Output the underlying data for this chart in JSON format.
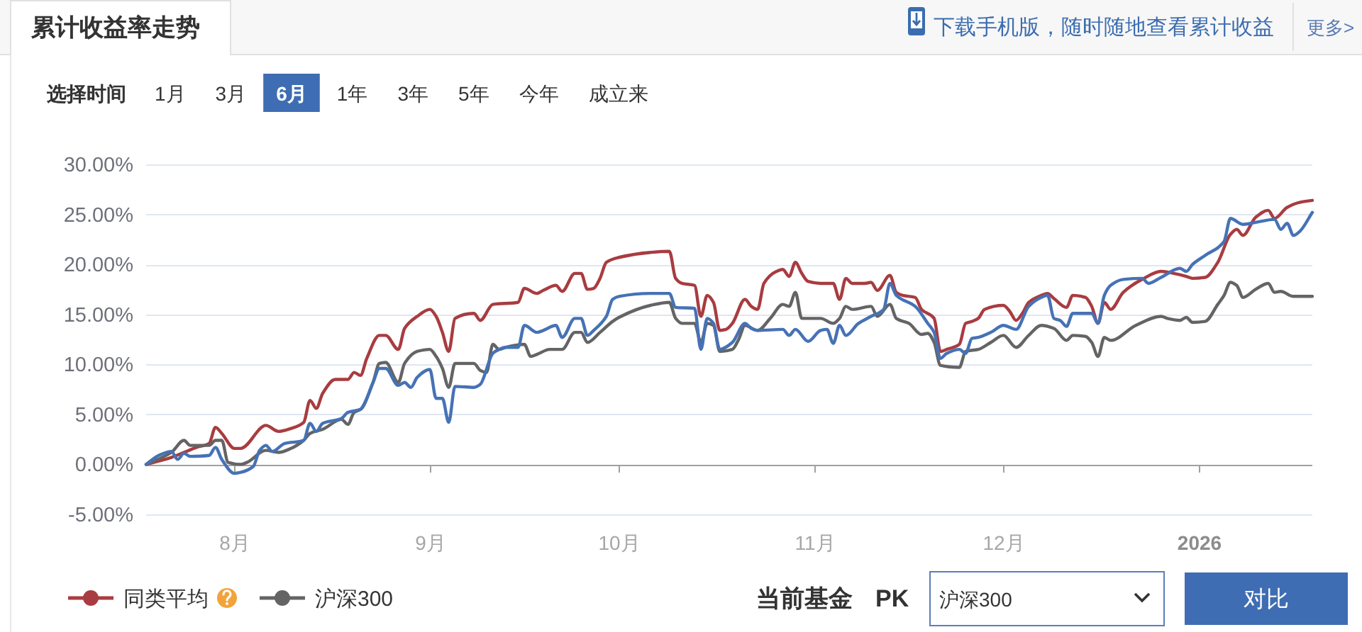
{
  "chart_data": {
    "type": "line",
    "title": "累计收益率走势",
    "xlim": [
      "2025-07-18",
      "2026-01-19"
    ],
    "xticks": [
      {
        "value": "2025-08-01",
        "label": "8月"
      },
      {
        "value": "2025-09-01",
        "label": "9月"
      },
      {
        "value": "2025-10-01",
        "label": "10月"
      },
      {
        "value": "2025-11-01",
        "label": "11月"
      },
      {
        "value": "2025-12-01",
        "label": "12月"
      },
      {
        "value": "2026-01-01",
        "label": "2026"
      }
    ],
    "ylim": [
      -5,
      30
    ],
    "yticks": [
      {
        "value": -5,
        "label": "-5.00%"
      },
      {
        "value": 0,
        "label": "0.00%"
      },
      {
        "value": 5,
        "label": "5.00%"
      },
      {
        "value": 10,
        "label": "10.00%"
      },
      {
        "value": 15,
        "label": "15.00%"
      },
      {
        "value": 20,
        "label": "20.00%"
      },
      {
        "value": 25,
        "label": "25.00%"
      },
      {
        "value": 30,
        "label": "30.00%"
      }
    ],
    "grid": "y",
    "legend": "bottom",
    "series": [
      {
        "name": "同类平均",
        "color": "#a83c40",
        "x": [
          "2025-07-18",
          "2025-07-22",
          "2025-07-24",
          "2025-07-26",
          "2025-07-28",
          "2025-07-29",
          "2025-07-30",
          "2025-08-01",
          "2025-08-02",
          "2025-08-06",
          "2025-08-08",
          "2025-08-10",
          "2025-08-12",
          "2025-08-13",
          "2025-08-14",
          "2025-08-15",
          "2025-08-17",
          "2025-08-19",
          "2025-08-20",
          "2025-08-21",
          "2025-08-22",
          "2025-08-24",
          "2025-08-25",
          "2025-08-27",
          "2025-08-28",
          "2025-08-30",
          "2025-09-01",
          "2025-09-02",
          "2025-09-03",
          "2025-09-04",
          "2025-09-05",
          "2025-09-08",
          "2025-09-09",
          "2025-09-11",
          "2025-09-15",
          "2025-09-16",
          "2025-09-18",
          "2025-09-19",
          "2025-09-21",
          "2025-09-22",
          "2025-09-24",
          "2025-09-25",
          "2025-09-26",
          "2025-09-27",
          "2025-09-28",
          "2025-09-29",
          "2025-10-01",
          "2025-10-06",
          "2025-10-09",
          "2025-10-10",
          "2025-10-11",
          "2025-10-13",
          "2025-10-14",
          "2025-10-15",
          "2025-10-16",
          "2025-10-17",
          "2025-10-18",
          "2025-10-19",
          "2025-10-21",
          "2025-10-22",
          "2025-10-23",
          "2025-10-24",
          "2025-10-26",
          "2025-10-27",
          "2025-10-28",
          "2025-10-29",
          "2025-10-30",
          "2025-10-31",
          "2025-11-02",
          "2025-11-04",
          "2025-11-05",
          "2025-11-06",
          "2025-11-07",
          "2025-11-09",
          "2025-11-10",
          "2025-11-11",
          "2025-11-13",
          "2025-11-14",
          "2025-11-15",
          "2025-11-17",
          "2025-11-18",
          "2025-11-20",
          "2025-11-21",
          "2025-11-22",
          "2025-11-24",
          "2025-11-25",
          "2025-11-26",
          "2025-11-27",
          "2025-11-28",
          "2025-12-01",
          "2025-12-02",
          "2025-12-03",
          "2025-12-04",
          "2025-12-05",
          "2025-12-07",
          "2025-12-08",
          "2025-12-09",
          "2025-12-11",
          "2025-12-12",
          "2025-12-14",
          "2025-12-15",
          "2025-12-16",
          "2025-12-17",
          "2025-12-18",
          "2025-12-20",
          "2025-12-23",
          "2025-12-26",
          "2025-12-28",
          "2025-12-30",
          "2025-12-31",
          "2026-01-02",
          "2026-01-04",
          "2026-01-06",
          "2026-01-07",
          "2026-01-08",
          "2026-01-10",
          "2026-01-12",
          "2026-01-13",
          "2026-01-15",
          "2026-01-17",
          "2026-01-19"
        ],
        "values": [
          0,
          0.7,
          1.2,
          1.7,
          2.1,
          3.7,
          3.1,
          1.6,
          1.6,
          3.9,
          3.3,
          3.6,
          4.2,
          6.4,
          5.6,
          7.1,
          8.5,
          8.5,
          9.2,
          8.9,
          10.6,
          12.9,
          12.9,
          11.5,
          13.6,
          14.8,
          15.5,
          14.8,
          13.2,
          11.3,
          14.6,
          15.1,
          14.4,
          16.0,
          16.2,
          17.6,
          17.1,
          17.4,
          17.9,
          17.3,
          19.1,
          19.1,
          17.5,
          17.6,
          18.6,
          20.2,
          20.7,
          21.2,
          21.3,
          18.6,
          18.1,
          17.9,
          14.8,
          16.9,
          16.2,
          13.4,
          13.5,
          14.1,
          16.5,
          15.8,
          15.5,
          18.1,
          19.3,
          19.5,
          18.8,
          20.2,
          19.1,
          18.3,
          18.1,
          18.1,
          16.5,
          18.6,
          18.1,
          18.1,
          18.2,
          17.4,
          18.9,
          17.2,
          16.9,
          16.7,
          15.5,
          14.6,
          11.3,
          11.5,
          12.0,
          14.1,
          14.3,
          14.6,
          15.5,
          15.9,
          15.3,
          14.4,
          15.1,
          16.2,
          16.9,
          17.1,
          16.6,
          15.7,
          16.9,
          16.7,
          15.8,
          14.1,
          16.2,
          15.5,
          17.2,
          18.5,
          19.3,
          19.1,
          18.8,
          18.6,
          18.7,
          20.2,
          23.0,
          23.5,
          22.9,
          24.7,
          25.4,
          24.6,
          25.7,
          26.2,
          26.4
        ]
      },
      {
        "name": "沪深300",
        "color": "#646464",
        "x": [
          "2025-07-18",
          "2025-07-22",
          "2025-07-24",
          "2025-07-25",
          "2025-07-28",
          "2025-07-29",
          "2025-07-30",
          "2025-07-31",
          "2025-08-02",
          "2025-08-03",
          "2025-08-06",
          "2025-08-08",
          "2025-08-10",
          "2025-08-12",
          "2025-08-13",
          "2025-08-15",
          "2025-08-18",
          "2025-08-19",
          "2025-08-20",
          "2025-08-21",
          "2025-08-23",
          "2025-08-24",
          "2025-08-25",
          "2025-08-27",
          "2025-08-28",
          "2025-08-30",
          "2025-09-01",
          "2025-09-02",
          "2025-09-03",
          "2025-09-04",
          "2025-09-05",
          "2025-09-08",
          "2025-09-09",
          "2025-09-10",
          "2025-09-11",
          "2025-09-12",
          "2025-09-13",
          "2025-09-16",
          "2025-09-17",
          "2025-09-18",
          "2025-09-20",
          "2025-09-22",
          "2025-09-24",
          "2025-09-25",
          "2025-09-26",
          "2025-09-28",
          "2025-09-30",
          "2025-10-01",
          "2025-10-06",
          "2025-10-09",
          "2025-10-10",
          "2025-10-11",
          "2025-10-13",
          "2025-10-14",
          "2025-10-15",
          "2025-10-16",
          "2025-10-17",
          "2025-10-19",
          "2025-10-20",
          "2025-10-21",
          "2025-10-23",
          "2025-10-25",
          "2025-10-27",
          "2025-10-28",
          "2025-10-29",
          "2025-10-30",
          "2025-11-02",
          "2025-11-04",
          "2025-11-05",
          "2025-11-06",
          "2025-11-07",
          "2025-11-10",
          "2025-11-11",
          "2025-11-13",
          "2025-11-14",
          "2025-11-16",
          "2025-11-18",
          "2025-11-19",
          "2025-11-20",
          "2025-11-21",
          "2025-11-24",
          "2025-11-25",
          "2025-11-27",
          "2025-11-29",
          "2025-12-01",
          "2025-12-03",
          "2025-12-05",
          "2025-12-07",
          "2025-12-09",
          "2025-12-11",
          "2025-12-12",
          "2025-12-14",
          "2025-12-15",
          "2025-12-16",
          "2025-12-17",
          "2025-12-18",
          "2025-12-22",
          "2025-12-26",
          "2025-12-27",
          "2025-12-29",
          "2025-12-30",
          "2025-12-31",
          "2026-01-02",
          "2026-01-04",
          "2026-01-05",
          "2026-01-06",
          "2026-01-07",
          "2026-01-08",
          "2026-01-10",
          "2026-01-12",
          "2026-01-13",
          "2026-01-14",
          "2026-01-16",
          "2026-01-19"
        ],
        "values": [
          0,
          1.2,
          2.4,
          1.9,
          1.9,
          2.4,
          2.4,
          0.2,
          0,
          0.2,
          1.4,
          1.2,
          1.6,
          2.4,
          3.1,
          3.5,
          4.5,
          4.0,
          5.2,
          5.5,
          8.2,
          10.1,
          10.2,
          8.2,
          10.1,
          11.3,
          11.5,
          10.8,
          9.6,
          7.7,
          10.1,
          10.1,
          9.4,
          9.2,
          12.0,
          11.5,
          11.7,
          12.0,
          10.8,
          11.0,
          11.5,
          11.5,
          13.2,
          13.2,
          12.2,
          13.2,
          14.3,
          14.7,
          15.9,
          16.2,
          14.6,
          14.1,
          14.1,
          12.2,
          14.1,
          13.9,
          11.3,
          11.5,
          12.5,
          13.9,
          13.4,
          14.6,
          16.0,
          15.8,
          17.2,
          14.6,
          14.6,
          14.1,
          14.6,
          15.8,
          15.5,
          15.8,
          14.8,
          16.0,
          14.6,
          14.1,
          13.0,
          13.1,
          12.2,
          9.9,
          9.7,
          11.3,
          11.5,
          12.2,
          12.9,
          11.7,
          12.9,
          13.9,
          13.6,
          12.4,
          12.9,
          12.8,
          12.2,
          10.8,
          12.7,
          12.4,
          13.9,
          14.8,
          14.6,
          14.4,
          14.7,
          14.2,
          14.3,
          16.0,
          16.9,
          18.2,
          17.9,
          16.7,
          17.5,
          18.1,
          17.2,
          17.3,
          16.8,
          16.8
        ]
      },
      {
        "color": "#4672b5",
        "x": [
          "2025-07-18",
          "2025-07-20",
          "2025-07-22",
          "2025-07-23",
          "2025-07-24",
          "2025-07-25",
          "2025-07-28",
          "2025-07-29",
          "2025-07-30",
          "2025-08-01",
          "2025-08-02",
          "2025-08-04",
          "2025-08-05",
          "2025-08-06",
          "2025-08-07",
          "2025-08-09",
          "2025-08-12",
          "2025-08-13",
          "2025-08-14",
          "2025-08-15",
          "2025-08-18",
          "2025-08-19",
          "2025-08-21",
          "2025-08-23",
          "2025-08-24",
          "2025-08-25",
          "2025-08-27",
          "2025-08-28",
          "2025-08-29",
          "2025-08-30",
          "2025-09-01",
          "2025-09-02",
          "2025-09-03",
          "2025-09-04",
          "2025-09-05",
          "2025-09-08",
          "2025-09-09",
          "2025-09-11",
          "2025-09-12",
          "2025-09-13",
          "2025-09-15",
          "2025-09-16",
          "2025-09-18",
          "2025-09-19",
          "2025-09-21",
          "2025-09-22",
          "2025-09-24",
          "2025-09-25",
          "2025-09-26",
          "2025-09-27",
          "2025-09-29",
          "2025-09-30",
          "2025-10-01",
          "2025-10-06",
          "2025-10-09",
          "2025-10-10",
          "2025-10-13",
          "2025-10-14",
          "2025-10-15",
          "2025-10-16",
          "2025-10-17",
          "2025-10-19",
          "2025-10-21",
          "2025-10-22",
          "2025-10-23",
          "2025-10-27",
          "2025-10-28",
          "2025-10-29",
          "2025-10-31",
          "2025-11-02",
          "2025-11-03",
          "2025-11-04",
          "2025-11-05",
          "2025-11-06",
          "2025-11-08",
          "2025-11-10",
          "2025-11-12",
          "2025-11-13",
          "2025-11-14",
          "2025-11-17",
          "2025-11-19",
          "2025-11-20",
          "2025-11-21",
          "2025-11-22",
          "2025-11-24",
          "2025-11-25",
          "2025-11-26",
          "2025-11-27",
          "2025-11-29",
          "2025-12-01",
          "2025-12-03",
          "2025-12-05",
          "2025-12-07",
          "2025-12-08",
          "2025-12-09",
          "2025-12-10",
          "2025-12-11",
          "2025-12-12",
          "2025-12-15",
          "2025-12-16",
          "2025-12-17",
          "2025-12-18",
          "2025-12-20",
          "2025-12-23",
          "2025-12-24",
          "2025-12-26",
          "2025-12-29",
          "2025-12-30",
          "2025-12-31",
          "2026-01-02",
          "2026-01-05",
          "2026-01-06",
          "2026-01-08",
          "2026-01-10",
          "2026-01-13",
          "2026-01-14",
          "2026-01-15",
          "2026-01-16",
          "2026-01-17",
          "2026-01-19"
        ],
        "values": [
          0,
          0.9,
          1.3,
          0.5,
          1.1,
          0.8,
          0.9,
          1.7,
          0.5,
          -0.9,
          -0.8,
          -0.2,
          1.4,
          1.9,
          1.3,
          2.1,
          2.4,
          4.1,
          3.3,
          4.1,
          4.6,
          5.2,
          5.5,
          8.2,
          9.6,
          9.6,
          7.9,
          8.2,
          7.7,
          8.7,
          9.5,
          6.6,
          6.6,
          4.2,
          7.8,
          7.7,
          8.0,
          11.1,
          11.5,
          11.7,
          11.7,
          13.9,
          13.2,
          13.4,
          13.9,
          12.7,
          14.6,
          14.6,
          12.9,
          13.4,
          14.8,
          16.5,
          16.8,
          17.1,
          17.1,
          15.7,
          15.6,
          11.5,
          14.6,
          14.1,
          11.5,
          12.2,
          14.1,
          13.6,
          13.4,
          13.5,
          12.9,
          13.5,
          12.3,
          13.4,
          13.5,
          12.1,
          13.9,
          12.9,
          14.1,
          14.8,
          15.5,
          18.1,
          16.9,
          15.8,
          14.1,
          13.2,
          10.6,
          11.1,
          11.5,
          11.1,
          12.6,
          12.7,
          13.2,
          13.9,
          13.5,
          15.8,
          16.7,
          16.9,
          14.6,
          14.4,
          13.8,
          15.1,
          15.1,
          14.1,
          16.9,
          17.9,
          18.5,
          18.6,
          18.1,
          18.7,
          19.6,
          19.3,
          20.0,
          20.9,
          22.3,
          24.6,
          24.0,
          24.2,
          24.5,
          23.5,
          24.1,
          22.9,
          23.3,
          25.2
        ]
      }
    ],
    "annotations": [
      "下载手机版，随时随地查看累计收益",
      "更多>",
      "选择时间",
      "1月",
      "3月",
      "6月",
      "1年",
      "3年",
      "5年",
      "今年",
      "成立来",
      "当前基金",
      "PK",
      "沪深300",
      "对比"
    ]
  }
}
